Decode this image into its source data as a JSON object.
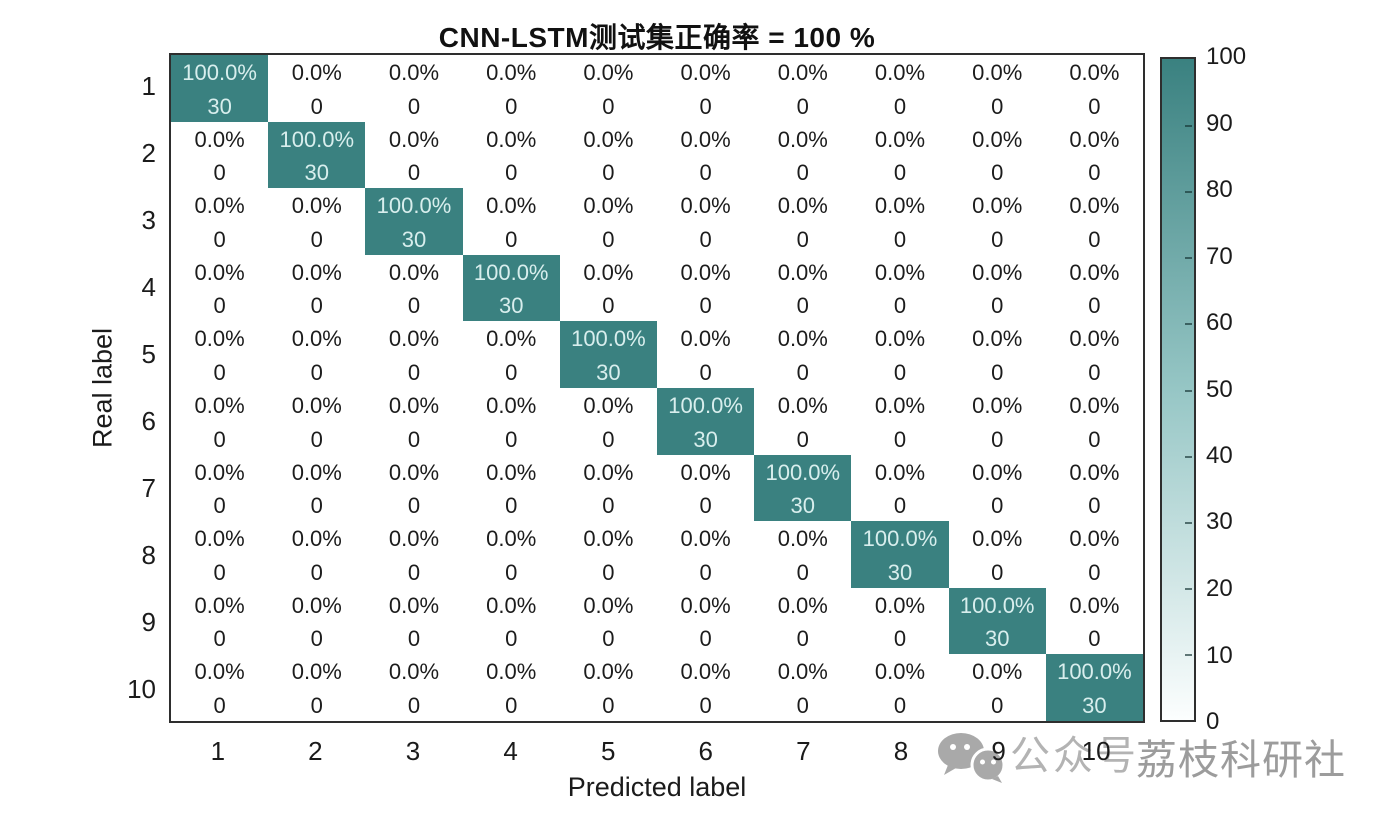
{
  "title": "CNN-LSTM测试集正确率 = 100 %",
  "chart_data": {
    "type": "heatmap",
    "subtype": "confusion-matrix",
    "title": "CNN-LSTM测试集正确率 = 100 %",
    "xlabel": "Predicted label",
    "ylabel": "Real label",
    "x_categories": [
      "1",
      "2",
      "3",
      "4",
      "5",
      "6",
      "7",
      "8",
      "9",
      "10"
    ],
    "y_categories": [
      "1",
      "2",
      "3",
      "4",
      "5",
      "6",
      "7",
      "8",
      "9",
      "10"
    ],
    "counts": [
      [
        30,
        0,
        0,
        0,
        0,
        0,
        0,
        0,
        0,
        0
      ],
      [
        0,
        30,
        0,
        0,
        0,
        0,
        0,
        0,
        0,
        0
      ],
      [
        0,
        0,
        30,
        0,
        0,
        0,
        0,
        0,
        0,
        0
      ],
      [
        0,
        0,
        0,
        30,
        0,
        0,
        0,
        0,
        0,
        0
      ],
      [
        0,
        0,
        0,
        0,
        30,
        0,
        0,
        0,
        0,
        0
      ],
      [
        0,
        0,
        0,
        0,
        0,
        30,
        0,
        0,
        0,
        0
      ],
      [
        0,
        0,
        0,
        0,
        0,
        0,
        30,
        0,
        0,
        0
      ],
      [
        0,
        0,
        0,
        0,
        0,
        0,
        0,
        30,
        0,
        0
      ],
      [
        0,
        0,
        0,
        0,
        0,
        0,
        0,
        0,
        30,
        0
      ],
      [
        0,
        0,
        0,
        0,
        0,
        0,
        0,
        0,
        0,
        30
      ]
    ],
    "percents": [
      [
        "100.0%",
        "0.0%",
        "0.0%",
        "0.0%",
        "0.0%",
        "0.0%",
        "0.0%",
        "0.0%",
        "0.0%",
        "0.0%"
      ],
      [
        "0.0%",
        "100.0%",
        "0.0%",
        "0.0%",
        "0.0%",
        "0.0%",
        "0.0%",
        "0.0%",
        "0.0%",
        "0.0%"
      ],
      [
        "0.0%",
        "0.0%",
        "100.0%",
        "0.0%",
        "0.0%",
        "0.0%",
        "0.0%",
        "0.0%",
        "0.0%",
        "0.0%"
      ],
      [
        "0.0%",
        "0.0%",
        "0.0%",
        "100.0%",
        "0.0%",
        "0.0%",
        "0.0%",
        "0.0%",
        "0.0%",
        "0.0%"
      ],
      [
        "0.0%",
        "0.0%",
        "0.0%",
        "0.0%",
        "100.0%",
        "0.0%",
        "0.0%",
        "0.0%",
        "0.0%",
        "0.0%"
      ],
      [
        "0.0%",
        "0.0%",
        "0.0%",
        "0.0%",
        "0.0%",
        "100.0%",
        "0.0%",
        "0.0%",
        "0.0%",
        "0.0%"
      ],
      [
        "0.0%",
        "0.0%",
        "0.0%",
        "0.0%",
        "0.0%",
        "0.0%",
        "100.0%",
        "0.0%",
        "0.0%",
        "0.0%"
      ],
      [
        "0.0%",
        "0.0%",
        "0.0%",
        "0.0%",
        "0.0%",
        "0.0%",
        "0.0%",
        "100.0%",
        "0.0%",
        "0.0%"
      ],
      [
        "0.0%",
        "0.0%",
        "0.0%",
        "0.0%",
        "0.0%",
        "0.0%",
        "0.0%",
        "0.0%",
        "100.0%",
        "0.0%"
      ],
      [
        "0.0%",
        "0.0%",
        "0.0%",
        "0.0%",
        "0.0%",
        "0.0%",
        "0.0%",
        "0.0%",
        "0.0%",
        "100.0%"
      ]
    ],
    "colorbar": {
      "min": 0,
      "max": 100,
      "ticks": [
        0,
        10,
        20,
        30,
        40,
        50,
        60,
        70,
        80,
        90,
        100
      ]
    },
    "colors": {
      "high": "#3a8180",
      "low": "#ffffff",
      "diag_text": "#d8eeed",
      "off_text": "#1c1c1c",
      "border": "#2e2e2e"
    },
    "grid": false,
    "legend_position": "colorbar-right"
  },
  "watermark": {
    "wechat_icon": "wechat-icon",
    "wechat_label": "公众号",
    "brand": "荔枝科研社"
  }
}
